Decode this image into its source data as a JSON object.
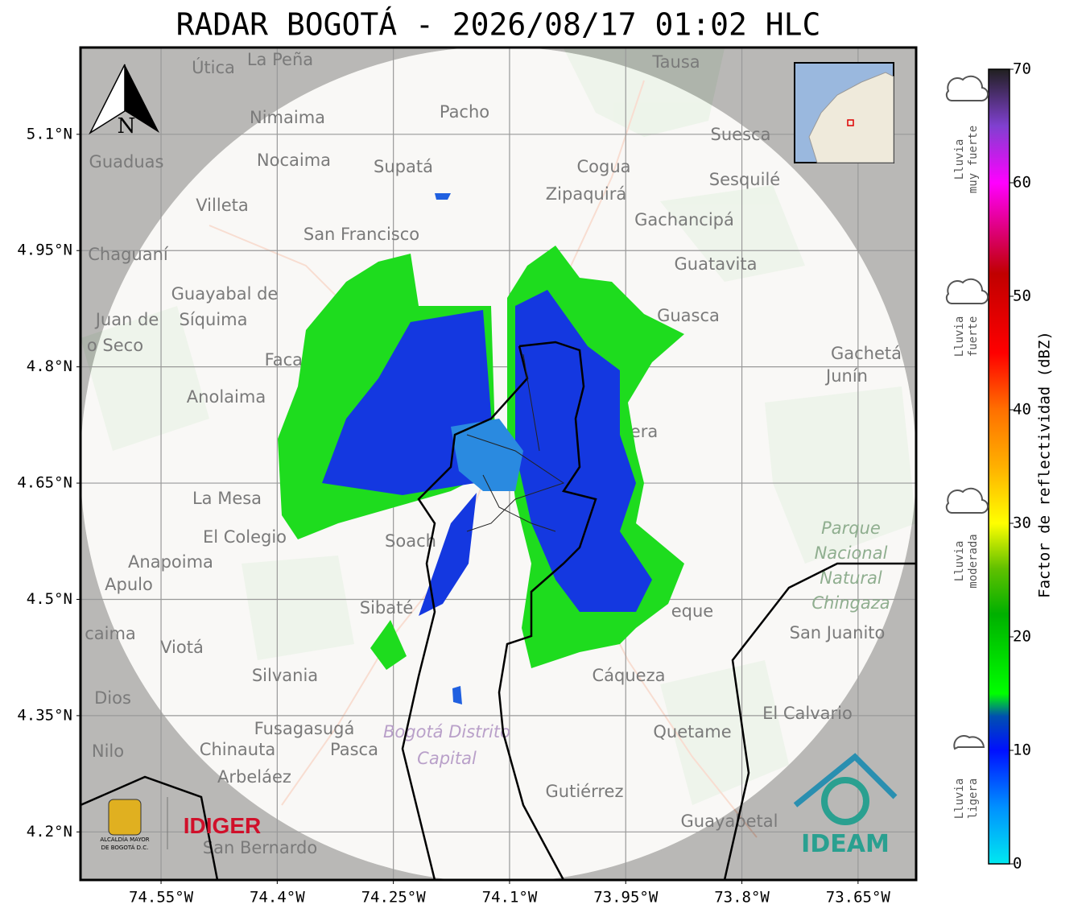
{
  "title": "RADAR BOGOTÁ - 2026/08/17 01:02 HLC",
  "map": {
    "xlim": [
      -74.654,
      -73.575
    ],
    "ylim": [
      4.138,
      5.212
    ],
    "xticks": [
      {
        "value": -74.55,
        "label": "74.55°W"
      },
      {
        "value": -74.4,
        "label": "74.4°W"
      },
      {
        "value": -74.25,
        "label": "74.25°W"
      },
      {
        "value": -74.1,
        "label": "74.1°W"
      },
      {
        "value": -73.95,
        "label": "73.95°W"
      },
      {
        "value": -73.8,
        "label": "73.8°W"
      },
      {
        "value": -73.65,
        "label": "73.65°W"
      }
    ],
    "yticks": [
      {
        "value": 5.1,
        "label": "5.1°N"
      },
      {
        "value": 4.95,
        "label": "4.95°N"
      },
      {
        "value": 4.8,
        "label": "4.8°N"
      },
      {
        "value": 4.65,
        "label": "4.65°N"
      },
      {
        "value": 4.5,
        "label": "4.5°N"
      },
      {
        "value": 4.35,
        "label": "4.35°N"
      },
      {
        "value": 4.2,
        "label": "4.2°N"
      }
    ],
    "places": [
      "Útica",
      "La Peña",
      "Tausa",
      "Pacho",
      "Nimaima",
      "Guaduas",
      "Nocaima",
      "Supatá",
      "Cogua",
      "Suesca",
      "Sesquilé",
      "Zipaquirá",
      "Villeta",
      "Gachancipá",
      "San Francisco",
      "Chaguaní",
      "Guatavita",
      "Guayabal de",
      "Síquima",
      "Juan de",
      "o Seco",
      "Guasca",
      "Facatat",
      "Gachetá",
      "Junín",
      "Anolaima",
      "La Mesa",
      "El Colegio",
      "Soach",
      "Anapoima",
      "Apulo",
      "Sibaté",
      "San Juanito",
      "caima",
      "Viotá",
      "Cáqueza",
      "Silvania",
      "Dios",
      "El Calvario",
      "Fusagasugá",
      "Quetame",
      "Pasca",
      "Nilo",
      "Chinauta",
      "Arbeláez",
      "Gutiérrez",
      "Guayabetal",
      "San Bernardo",
      "eque",
      "era"
    ],
    "park": [
      "Parque",
      "Nacional",
      "Natural",
      "Chingaza"
    ],
    "district": [
      "Bogotá Distrito",
      "Capital"
    ],
    "north": "N"
  },
  "colorbar": {
    "label": "Factor de reflectividad (dBZ)",
    "lim": [
      0,
      70
    ],
    "ticks": [
      0,
      10,
      20,
      30,
      40,
      50,
      60,
      70
    ],
    "stops": [
      [
        0,
        "#00e8f0"
      ],
      [
        5,
        "#0090ff"
      ],
      [
        10,
        "#0010ff"
      ],
      [
        13,
        "#0050b0"
      ],
      [
        15,
        "#00ff00"
      ],
      [
        22,
        "#00b000"
      ],
      [
        26,
        "#60c000"
      ],
      [
        30,
        "#ffff00"
      ],
      [
        35,
        "#ffb000"
      ],
      [
        40,
        "#ff7000"
      ],
      [
        45,
        "#ff0000"
      ],
      [
        52,
        "#c00000"
      ],
      [
        60,
        "#ff00ff"
      ],
      [
        65,
        "#8040d0"
      ],
      [
        70,
        "#202020"
      ]
    ]
  },
  "rain_labels": [
    [
      "Lluvia",
      "muy fuerte"
    ],
    [
      "Lluvia",
      "fuerte"
    ],
    [
      "Lluvia",
      "moderada"
    ],
    [
      "Lluvia",
      "ligera"
    ]
  ],
  "logos": {
    "alcaldia": [
      "ALCALDÍA MAYOR",
      "DE BOGOTÁ D.C."
    ],
    "idiger": "IDIGER",
    "ideam": "IDEAM"
  }
}
